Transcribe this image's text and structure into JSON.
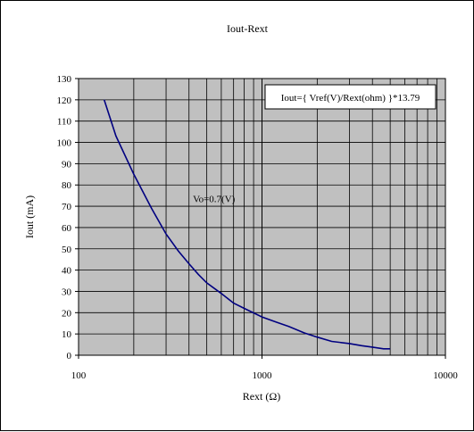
{
  "chart_data": {
    "type": "line",
    "title": "Iout-Rext",
    "xlabel": "Rext (Ω)",
    "ylabel": "Iout (mA)",
    "x_scale": "log",
    "xlim": [
      100,
      10000
    ],
    "ylim": [
      0,
      130
    ],
    "x_ticks": [
      100,
      1000,
      10000
    ],
    "y_ticks": [
      0,
      10,
      20,
      30,
      40,
      50,
      60,
      70,
      80,
      90,
      100,
      110,
      120,
      130
    ],
    "grid": true,
    "plot_background": "#c0c0c0",
    "series": [
      {
        "name": "",
        "color": "#000080",
        "x": [
          138,
          160,
          200,
          250,
          300,
          350,
          400,
          450,
          500,
          600,
          700,
          800,
          1000,
          1200,
          1400,
          1700,
          2000,
          2400,
          3000,
          3500,
          4000,
          4600,
          5000
        ],
        "y": [
          120,
          103,
          85,
          69,
          57,
          49,
          43,
          38,
          34,
          29,
          24.5,
          22,
          18,
          15.5,
          13.5,
          10.5,
          8.5,
          6.5,
          5.5,
          4.5,
          3.8,
          3,
          3
        ]
      }
    ],
    "annotations": [
      {
        "text": "Vo=0.7(V)",
        "x": 420,
        "y": 72
      },
      {
        "text": "Iout={ Vref(V)/Rext(ohm) }*13.79",
        "boxed": true
      }
    ]
  }
}
